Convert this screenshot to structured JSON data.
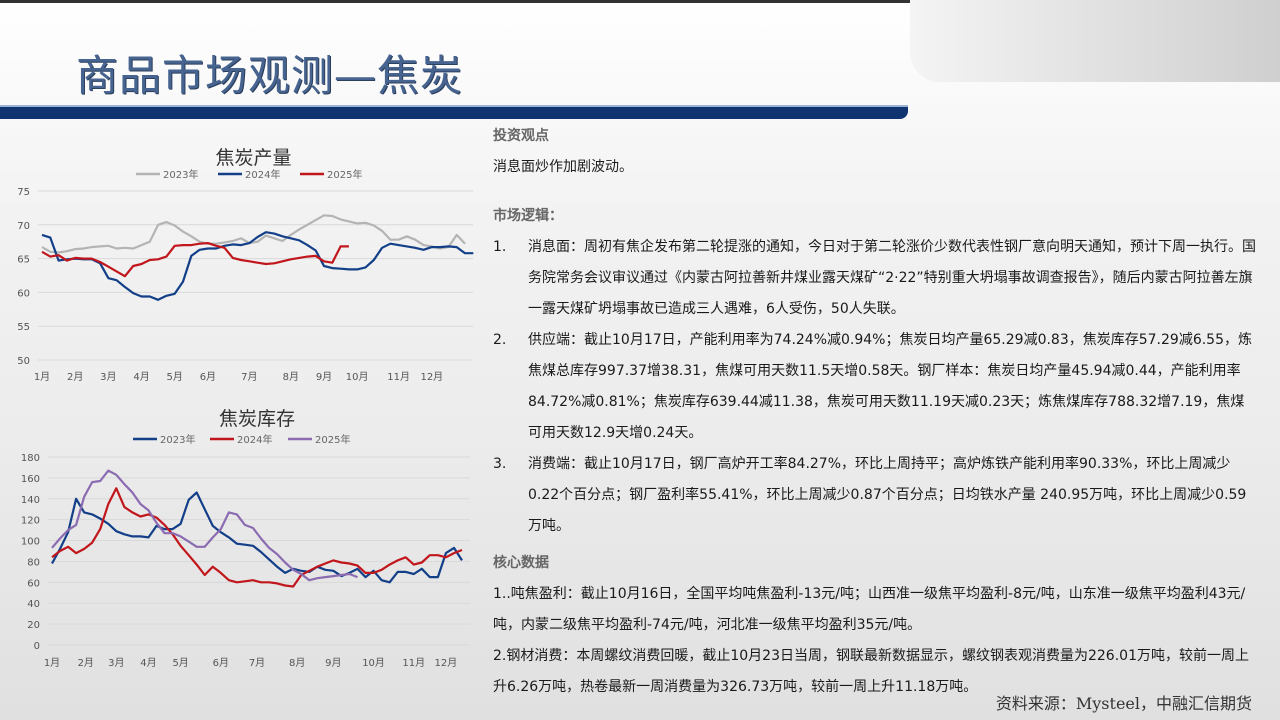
{
  "header": {
    "title": "商品市场观测—焦炭",
    "band_color": "#0f3470",
    "title_color": "#46648f"
  },
  "right": {
    "view_heading": "投资观点",
    "view_text": "消息面炒作加剧波动。",
    "logic_heading": "市场逻辑：",
    "logic_items": [
      {
        "num": "1.",
        "text": "消息面：周初有焦企发布第二轮提涨的通知，今日对于第二轮涨价少数代表性钢厂意向明天通知，预计下周一执行。国务院常务会议审议通过《内蒙古阿拉善新井煤业露天煤矿“2·22”特别重大坍塌事故调查报告》，随后内蒙古阿拉善左旗一露天煤矿坍塌事故已造成三人遇难，6人受伤，50人失联。"
      },
      {
        "num": "2.",
        "text": "供应端：截止10月17日，产能利用率为74.24%减0.94%；焦炭日均产量65.29减0.83，焦炭库存57.29减6.55，炼焦煤总库存997.37增38.31，焦煤可用天数11.5天增0.58天。钢厂样本：焦炭日均产量45.94减0.44，产能利用率84.72%减0.81%；焦炭库存639.44减11.38，焦炭可用天数11.19天减0.23天；炼焦煤库存788.32增7.19，焦煤可用天数12.9天增0.24天。"
      },
      {
        "num": "3.",
        "text": "消费端：截止10月17日，钢厂高炉开工率84.27%，环比上周持平；高炉炼铁产能利用率90.33%，环比上周减少0.22个百分点；钢厂盈利率55.41%，环比上周减少0.87个百分点；日均铁水产量 240.95万吨，环比上周减少0.59万吨。"
      }
    ],
    "core_heading": "核心数据",
    "core_items": [
      "1..吨焦盈利：截止10月16日，全国平均吨焦盈利-13元/吨；山西准一级焦平均盈利-8元/吨，山东准一级焦平均盈利43元/吨，内蒙二级焦平均盈利-74元/吨，河北准一级焦平均盈利35元/吨。",
      "2.钢材消费：本周螺纹消费回暖，截止10月23日当周，钢联最新数据显示，螺纹钢表观消费量为226.01万吨，较前一周上升6.26万吨，热卷最新一周消费量为326.73万吨，较前一周上升11.18万吨。"
    ],
    "source": "资料来源：Mysteel，中融汇信期货"
  },
  "chart_data": [
    {
      "type": "line",
      "title": "焦炭产量",
      "xlabel": "",
      "ylabel": "",
      "ylim": [
        50,
        75
      ],
      "yticks": [
        50,
        55,
        60,
        65,
        70,
        75
      ],
      "grid": true,
      "legend": "top",
      "x_unit": "week",
      "month_labels": [
        {
          "label": "1月",
          "week": 0
        },
        {
          "label": "2月",
          "week": 4
        },
        {
          "label": "3月",
          "week": 8
        },
        {
          "label": "4月",
          "week": 12
        },
        {
          "label": "5月",
          "week": 16
        },
        {
          "label": "6月",
          "week": 20
        },
        {
          "label": "7月",
          "week": 25
        },
        {
          "label": "8月",
          "week": 30
        },
        {
          "label": "9月",
          "week": 34
        },
        {
          "label": "10月",
          "week": 38
        },
        {
          "label": "11月",
          "week": 43
        },
        {
          "label": "12月",
          "week": 47
        }
      ],
      "series": [
        {
          "name": "2023年",
          "color": "#b4b4b4",
          "values": [
            66.7,
            66.0,
            65.9,
            66.1,
            66.4,
            66.5,
            66.7,
            66.8,
            66.9,
            66.5,
            66.6,
            66.5,
            67.0,
            67.5,
            70.0,
            70.4,
            69.9,
            69.0,
            68.3,
            67.5,
            67.2,
            67.2,
            67.4,
            67.6,
            68.0,
            67.3,
            67.5,
            68.4,
            68.0,
            67.6,
            68.5,
            69.3,
            70.0,
            70.7,
            71.4,
            71.3,
            70.8,
            70.5,
            70.2,
            70.3,
            69.9,
            69.1,
            67.8,
            67.8,
            68.3,
            67.8,
            67.0,
            66.8,
            66.5,
            66.7,
            68.5,
            67.2
          ]
        },
        {
          "name": "2024年",
          "color": "#123f88",
          "values": [
            68.5,
            68.1,
            64.7,
            64.9,
            65.0,
            64.9,
            64.9,
            64.3,
            62.1,
            61.8,
            60.8,
            59.9,
            59.4,
            59.4,
            58.9,
            59.5,
            59.8,
            61.6,
            65.4,
            66.3,
            66.5,
            66.5,
            66.9,
            67.1,
            67.0,
            67.3,
            68.2,
            68.9,
            68.7,
            68.3,
            68.0,
            67.7,
            67.0,
            66.2,
            63.9,
            63.6,
            63.5,
            63.4,
            63.4,
            63.7,
            64.8,
            66.6,
            67.2,
            67.0,
            66.8,
            66.6,
            66.3,
            66.7,
            66.7,
            66.8,
            66.7,
            65.8,
            65.8
          ]
        },
        {
          "name": "2025年",
          "color": "#c0161c",
          "values": [
            66.0,
            65.3,
            65.5,
            64.7,
            65.1,
            65.0,
            65.0,
            64.5,
            63.8,
            63.1,
            62.4,
            63.9,
            64.2,
            64.8,
            64.9,
            65.3,
            66.9,
            67.0,
            67.0,
            67.2,
            67.3,
            66.9,
            66.6,
            65.1,
            64.8,
            64.6,
            64.4,
            64.2,
            64.3,
            64.6,
            64.9,
            65.1,
            65.3,
            65.4,
            64.6,
            64.4,
            66.8,
            66.8
          ]
        }
      ]
    },
    {
      "type": "line",
      "title": "焦炭库存",
      "xlabel": "",
      "ylabel": "",
      "ylim": [
        0,
        180
      ],
      "yticks": [
        0,
        20,
        40,
        60,
        80,
        100,
        120,
        140,
        160,
        180
      ],
      "grid": true,
      "legend": "top",
      "x_unit": "week",
      "month_labels": [
        {
          "label": "1月",
          "week": 0
        },
        {
          "label": "2月",
          "week": 4.2
        },
        {
          "label": "3月",
          "week": 8
        },
        {
          "label": "4月",
          "week": 12
        },
        {
          "label": "5月",
          "week": 16
        },
        {
          "label": "6月",
          "week": 21
        },
        {
          "label": "7月",
          "week": 25.5
        },
        {
          "label": "8月",
          "week": 30.5
        },
        {
          "label": "9月",
          "week": 35
        },
        {
          "label": "10月",
          "week": 40
        },
        {
          "label": "11月",
          "week": 45
        },
        {
          "label": "12月",
          "week": 49
        }
      ],
      "series": [
        {
          "name": "2023年",
          "color": "#123f88",
          "values": [
            78,
            92,
            108,
            140,
            127,
            125,
            121,
            116,
            109,
            106,
            104,
            104,
            103,
            114,
            111,
            111,
            116,
            139,
            146,
            130,
            114,
            108,
            103,
            97,
            96,
            95,
            89,
            82,
            75,
            69,
            73,
            71,
            70,
            75,
            72,
            71,
            66,
            69,
            73,
            65,
            71,
            62,
            60,
            70,
            70,
            68,
            73,
            65,
            65,
            88,
            93,
            81
          ]
        },
        {
          "name": "2024年",
          "color": "#c0161c",
          "values": [
            84,
            90,
            94,
            88,
            92,
            98,
            111,
            135,
            150,
            132,
            127,
            123,
            125,
            122,
            115,
            106,
            95,
            86,
            77,
            67,
            75,
            69,
            62,
            60,
            61,
            62,
            60,
            60,
            59,
            57,
            56,
            67,
            71,
            75,
            78,
            81,
            79,
            78,
            76,
            69,
            69,
            72,
            77,
            81,
            84,
            77,
            79,
            86,
            86,
            84,
            88,
            91
          ]
        },
        {
          "name": "2025年",
          "color": "#8b6bb1",
          "values": [
            93,
            102,
            110,
            115,
            142,
            156,
            157,
            167,
            163,
            154,
            146,
            135,
            129,
            117,
            107,
            107,
            104,
            99,
            94,
            94,
            103,
            111,
            127,
            125,
            115,
            112,
            102,
            93,
            87,
            79,
            72,
            68,
            62,
            64,
            65,
            66,
            67,
            68,
            65
          ]
        }
      ]
    }
  ]
}
